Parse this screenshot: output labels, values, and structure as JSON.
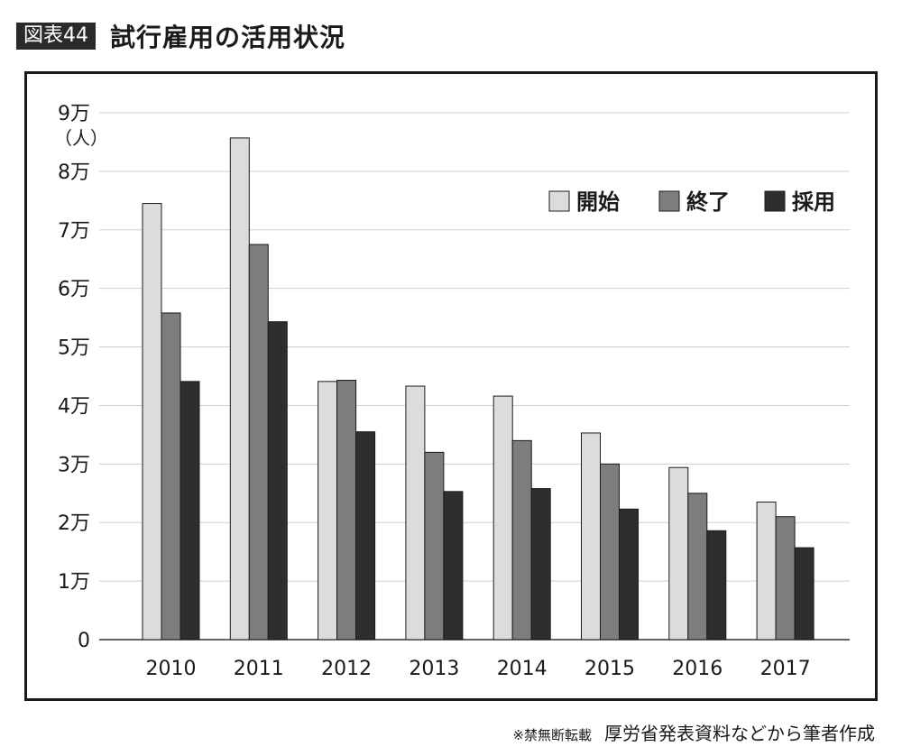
{
  "header": {
    "badge": "図表44",
    "title": "試行雇用の活用状況"
  },
  "footer": {
    "note": "※禁無断転載",
    "source": "厚労省発表資料などから筆者作成"
  },
  "colors": {
    "開始": "#dcdcdc",
    "終了": "#7d7d7d",
    "採用": "#2e2e2e",
    "gridline": "#cfcfcf",
    "frame": "#1a1a1a"
  },
  "chart_data": {
    "type": "bar",
    "title": "",
    "xlabel": "",
    "ylabel": "（人）",
    "categories": [
      "2010",
      "2011",
      "2012",
      "2013",
      "2014",
      "2015",
      "2016",
      "2017"
    ],
    "series": [
      {
        "name": "開始",
        "values": [
          74500,
          85700,
          44100,
          43300,
          41600,
          35300,
          29400,
          23500
        ]
      },
      {
        "name": "終了",
        "values": [
          55800,
          67500,
          44300,
          32000,
          34000,
          30000,
          25000,
          21000
        ]
      },
      {
        "name": "採用",
        "values": [
          44100,
          54300,
          35500,
          25300,
          25800,
          22300,
          18600,
          15700
        ]
      }
    ],
    "ylim": [
      0,
      90000
    ],
    "y_ticks": [
      {
        "value": 0,
        "label": "0"
      },
      {
        "value": 10000,
        "label": "1万"
      },
      {
        "value": 20000,
        "label": "2万"
      },
      {
        "value": 30000,
        "label": "3万"
      },
      {
        "value": 40000,
        "label": "4万"
      },
      {
        "value": 50000,
        "label": "5万"
      },
      {
        "value": 60000,
        "label": "6万"
      },
      {
        "value": 70000,
        "label": "7万"
      },
      {
        "value": 80000,
        "label": "8万"
      },
      {
        "value": 90000,
        "label": "9万"
      }
    ],
    "grid": true,
    "legend_position": "top-right"
  }
}
